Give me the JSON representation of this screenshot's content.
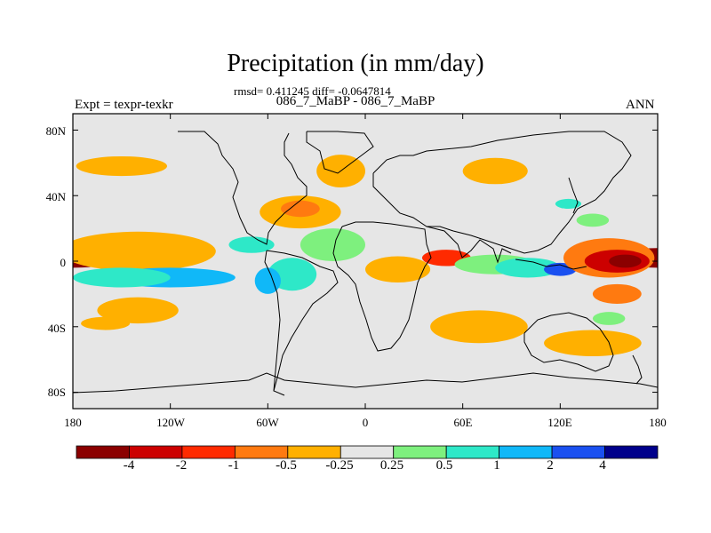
{
  "title": "Precipitation (in mm/day)",
  "stats": "rmsd= 0.411245 diff= -0.0647814",
  "experiment_label": "Expt = texpr-texkr",
  "case_label": "086_7_MaBP - 086_7_MaBP",
  "season": "ANN",
  "colors": {
    "background_field": "#e6e6e6",
    "levels": [
      "#8b0000",
      "#cc0000",
      "#ff2a00",
      "#ff7a10",
      "#ffb000",
      "#e6e6e6",
      "#7ef07e",
      "#2ee8c8",
      "#10b8f8",
      "#1a50f0",
      "#00008b"
    ]
  },
  "axes": {
    "lat_ticks": [
      "80N",
      "40N",
      "0",
      "40S",
      "80S"
    ],
    "lat_values": [
      80,
      40,
      0,
      -40,
      -80
    ],
    "lon_ticks": [
      "180",
      "120W",
      "60W",
      "0",
      "60E",
      "120E",
      "180"
    ],
    "lon_values": [
      -180,
      -120,
      -60,
      0,
      60,
      120,
      180
    ]
  },
  "colorbar": {
    "labels": [
      "-4",
      "-2",
      "-1",
      "-0.5",
      "-0.25",
      "0.25",
      "0.5",
      "1",
      "2",
      "4"
    ]
  },
  "anomaly_regions": [
    {
      "lon": 180,
      "lat": 2,
      "lon_r": 30,
      "lat_r": 6,
      "level": 0
    },
    {
      "lon": -140,
      "lat": 4,
      "lon_r": 32,
      "lat_r": 8,
      "level": 2
    },
    {
      "lon": -140,
      "lat": 6,
      "lon_r": 48,
      "lat_r": 12,
      "level": 4
    },
    {
      "lon": -120,
      "lat": -10,
      "lon_r": 40,
      "lat_r": 6,
      "level": 8
    },
    {
      "lon": -150,
      "lat": -10,
      "lon_r": 30,
      "lat_r": 6,
      "level": 7
    },
    {
      "lon": -140,
      "lat": -30,
      "lon_r": 25,
      "lat_r": 8,
      "level": 4
    },
    {
      "lon": -150,
      "lat": 58,
      "lon_r": 28,
      "lat_r": 6,
      "level": 4
    },
    {
      "lon": -40,
      "lat": 30,
      "lon_r": 25,
      "lat_r": 10,
      "level": 4
    },
    {
      "lon": -40,
      "lat": 32,
      "lon_r": 12,
      "lat_r": 5,
      "level": 3
    },
    {
      "lon": -15,
      "lat": 55,
      "lon_r": 15,
      "lat_r": 10,
      "level": 4
    },
    {
      "lon": -70,
      "lat": 10,
      "lon_r": 14,
      "lat_r": 5,
      "level": 7
    },
    {
      "lon": -45,
      "lat": -8,
      "lon_r": 15,
      "lat_r": 10,
      "level": 7
    },
    {
      "lon": -60,
      "lat": -12,
      "lon_r": 8,
      "lat_r": 8,
      "level": 8
    },
    {
      "lon": -20,
      "lat": 10,
      "lon_r": 20,
      "lat_r": 10,
      "level": 6
    },
    {
      "lon": 20,
      "lat": -5,
      "lon_r": 20,
      "lat_r": 8,
      "level": 4
    },
    {
      "lon": 50,
      "lat": 2,
      "lon_r": 15,
      "lat_r": 5,
      "level": 2
    },
    {
      "lon": 80,
      "lat": -2,
      "lon_r": 25,
      "lat_r": 6,
      "level": 6
    },
    {
      "lon": 100,
      "lat": -4,
      "lon_r": 20,
      "lat_r": 6,
      "level": 7
    },
    {
      "lon": 120,
      "lat": -5,
      "lon_r": 10,
      "lat_r": 4,
      "level": 9
    },
    {
      "lon": 150,
      "lat": 2,
      "lon_r": 28,
      "lat_r": 12,
      "level": 3
    },
    {
      "lon": 155,
      "lat": 0,
      "lon_r": 20,
      "lat_r": 7,
      "level": 1
    },
    {
      "lon": 160,
      "lat": 0,
      "lon_r": 10,
      "lat_r": 4,
      "level": 0
    },
    {
      "lon": 155,
      "lat": -20,
      "lon_r": 15,
      "lat_r": 6,
      "level": 3
    },
    {
      "lon": 80,
      "lat": 55,
      "lon_r": 20,
      "lat_r": 8,
      "level": 4
    },
    {
      "lon": 140,
      "lat": 25,
      "lon_r": 10,
      "lat_r": 4,
      "level": 6
    },
    {
      "lon": 125,
      "lat": 35,
      "lon_r": 8,
      "lat_r": 3,
      "level": 7
    },
    {
      "lon": 70,
      "lat": -40,
      "lon_r": 30,
      "lat_r": 10,
      "level": 4
    },
    {
      "lon": 140,
      "lat": -50,
      "lon_r": 30,
      "lat_r": 8,
      "level": 4
    },
    {
      "lon": 150,
      "lat": -35,
      "lon_r": 10,
      "lat_r": 4,
      "level": 6
    },
    {
      "lon": -160,
      "lat": -38,
      "lon_r": 15,
      "lat_r": 4,
      "level": 4
    }
  ]
}
